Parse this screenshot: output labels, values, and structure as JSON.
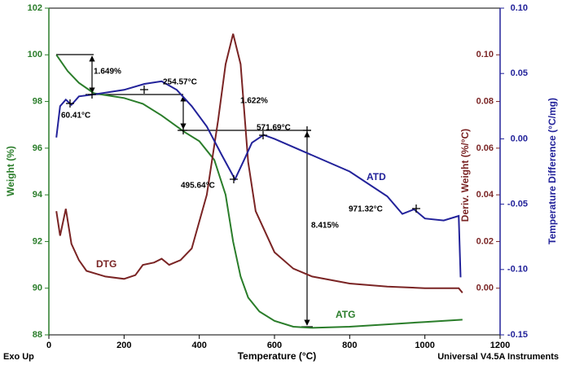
{
  "chart_data": {
    "type": "line",
    "xlabel": "Temperature (°C)",
    "ylabel": "Weight (%)",
    "y2label": "Deriv. Weight (%/°C)",
    "y3label": "Temperature Difference (°C/mg)",
    "xlim": [
      0,
      1200
    ],
    "xticks": [
      0,
      200,
      400,
      600,
      800,
      1000,
      1200
    ],
    "ylim": [
      88,
      102
    ],
    "yticks": [
      88,
      90,
      92,
      94,
      96,
      98,
      100,
      102
    ],
    "y2lim": [
      -0.02,
      0.12
    ],
    "y2ticks": [
      {
        "value": 0,
        "label": "0.00"
      },
      0.02,
      0.04,
      0.06,
      0.08,
      {
        "value": 0.1,
        "label": "0.10"
      }
    ],
    "y3lim": [
      -0.15,
      0.1
    ],
    "y3ticks": [
      -0.15,
      {
        "value": -0.1,
        "label": "-0.10"
      },
      -0.05,
      {
        "value": 0,
        "label": "0.00"
      },
      0.05,
      {
        "value": 0.1,
        "label": "0.10"
      }
    ],
    "series": [
      {
        "name": "ATG",
        "color": "#2a7d2a",
        "axis": "y",
        "x": [
          20,
          50,
          80,
          120,
          200,
          250,
          300,
          360,
          400,
          440,
          470,
          490,
          510,
          530,
          560,
          600,
          650,
          700,
          800,
          900,
          1000,
          1100
        ],
        "values": [
          100.0,
          99.3,
          98.8,
          98.35,
          98.15,
          97.9,
          97.4,
          96.7,
          96.3,
          95.5,
          94.0,
          92.0,
          90.5,
          89.6,
          89.0,
          88.6,
          88.35,
          88.3,
          88.35,
          88.45,
          88.55,
          88.65
        ]
      },
      {
        "name": "DTG",
        "color": "#7a2424",
        "axis": "y2",
        "x": [
          20,
          30,
          45,
          60,
          80,
          100,
          150,
          200,
          230,
          250,
          280,
          300,
          320,
          350,
          380,
          420,
          450,
          470,
          490,
          510,
          530,
          550,
          600,
          650,
          700,
          800,
          900,
          1000,
          1090,
          1100
        ],
        "values": [
          0.033,
          0.0225,
          0.034,
          0.019,
          0.012,
          0.0074,
          0.005,
          0.004,
          0.0056,
          0.01,
          0.011,
          0.0126,
          0.01,
          0.012,
          0.017,
          0.04,
          0.072,
          0.096,
          0.109,
          0.096,
          0.054,
          0.033,
          0.0154,
          0.0084,
          0.005,
          0.002,
          0.0007,
          0,
          0,
          -0.002
        ]
      },
      {
        "name": "ATD",
        "color": "#22229a",
        "axis": "y3",
        "x": [
          20,
          30,
          45,
          60,
          80,
          120,
          200,
          254,
          300,
          340,
          380,
          420,
          460,
          495,
          520,
          540,
          571,
          600,
          700,
          800,
          900,
          940,
          971,
          1000,
          1050,
          1090,
          1095
        ],
        "values": [
          0.001,
          0.025,
          0.03,
          0.026,
          0.0325,
          0.034,
          0.0375,
          0.042,
          0.044,
          0.0375,
          0.025,
          0.0094,
          -0.0125,
          -0.031,
          -0.0156,
          -0.003,
          0.003,
          0,
          -0.0125,
          -0.025,
          -0.044,
          -0.0575,
          -0.054,
          -0.061,
          -0.0625,
          -0.059,
          -0.106
        ]
      }
    ],
    "annotations": [
      "1.649%",
      "254.57°C",
      "60.41°C",
      "1.622%",
      "571.69°C",
      "495.64°C",
      "8.415%",
      "971.32°C"
    ],
    "corner_left": "Exo Up",
    "corner_right": "Universal V4.5A Instruments"
  }
}
